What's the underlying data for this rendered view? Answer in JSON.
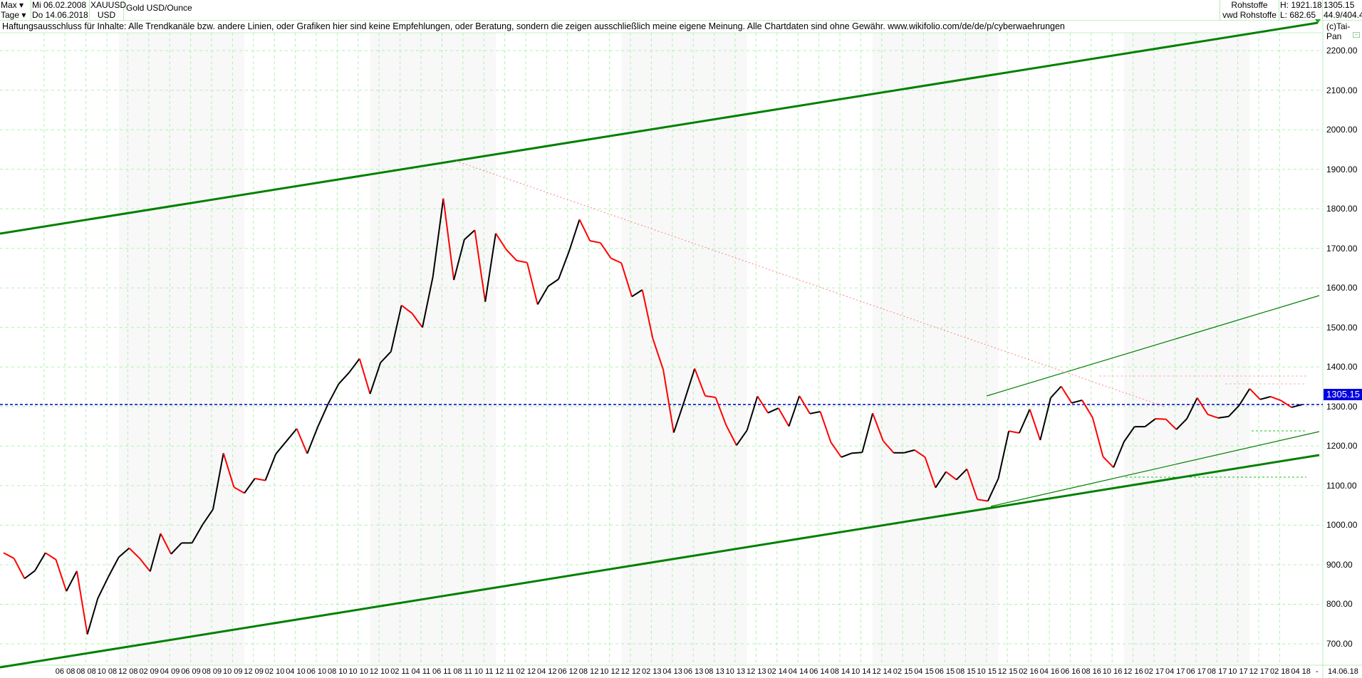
{
  "header": {
    "period": "Max",
    "start_date": "Mi 06.02.2008",
    "interval": "Tage",
    "end_date": "Do 14.06.2018",
    "symbol": "XAUUSD",
    "currency": "USD",
    "name": "Gold USD/Ounce",
    "category": "Rohstoffe",
    "source": "vwd Rohstoffe",
    "high": "H: 1921.18",
    "low": "L: 682.65",
    "last": "1305.15",
    "extra": "44.9/404.4",
    "copyright": "(c)Tai-Pan"
  },
  "disclaimer": "Haftungsausschluss für Inhalte: Alle Trendkanäle bzw. andere Linien, oder Grafiken hier sind keine Empfehlungen, oder Beratung, sondern die zeigen ausschließlich meine eigene Meinung. Alle Chartdaten sind ohne Gewähr.  www.wikifolio.com/de/de/p/cyberwaehrungen",
  "footer": {
    "dash": "-",
    "date": "14.06.18"
  },
  "colors": {
    "up": "#000000",
    "down": "#ff0000",
    "trend": "#008000",
    "grid": "#b0f0b0",
    "resistance": "#ff8080",
    "price_line": "#0000c0"
  },
  "chart_data": {
    "type": "line",
    "title": "Gold USD/Ounce",
    "x_start": "2008-02",
    "x_step": "month",
    "ylim": [
      650,
      2300
    ],
    "grid": true,
    "yticks": [
      "700.00",
      "800.00",
      "900.00",
      "1000.00",
      "1100.00",
      "1200.00",
      "1300.00",
      "1400.00",
      "1500.00",
      "1600.00",
      "1700.00",
      "1800.00",
      "1900.00",
      "2000.00",
      "2100.00",
      "2200.00"
    ],
    "xtick_labels": [
      "06 08",
      "08 08",
      "10 08",
      "12 08",
      "02 09",
      "04 09",
      "06 09",
      "08 09",
      "10 09",
      "12 09",
      "02 10",
      "04 10",
      "06 10",
      "08 10",
      "10 10",
      "12 10",
      "02 11",
      "04 11",
      "06 11",
      "08 11",
      "10 11",
      "12 11",
      "02 12",
      "04 12",
      "06 12",
      "08 12",
      "10 12",
      "12 12",
      "02 13",
      "04 13",
      "06 13",
      "08 13",
      "10 13",
      "12 13",
      "02 14",
      "04 14",
      "06 14",
      "08 14",
      "10 14",
      "12 14",
      "02 15",
      "04 15",
      "06 15",
      "08 15",
      "10 15",
      "12 15",
      "02 16",
      "04 16",
      "06 16",
      "08 16",
      "10 16",
      "12 16",
      "02 17",
      "04 17",
      "06 17",
      "08 17",
      "10 17",
      "12 17",
      "02 18",
      "04 18"
    ],
    "values": [
      930,
      916,
      865,
      885,
      930,
      913,
      833,
      884,
      724,
      815,
      869,
      919,
      942,
      916,
      883,
      979,
      927,
      955,
      955,
      1001,
      1040,
      1182,
      1096,
      1081,
      1118,
      1113,
      1180,
      1212,
      1244,
      1181,
      1248,
      1307,
      1357,
      1386,
      1421,
      1332,
      1411,
      1439,
      1556,
      1536,
      1500,
      1628,
      1826,
      1620,
      1722,
      1746,
      1565,
      1738,
      1697,
      1669,
      1664,
      1558,
      1604,
      1622,
      1692,
      1773,
      1719,
      1714,
      1675,
      1663,
      1578,
      1595,
      1472,
      1393,
      1234,
      1313,
      1396,
      1327,
      1323,
      1253,
      1202,
      1240,
      1326,
      1284,
      1296,
      1250,
      1327,
      1282,
      1287,
      1210,
      1172,
      1182,
      1184,
      1283,
      1213,
      1183,
      1183,
      1190,
      1172,
      1095,
      1135,
      1115,
      1142,
      1065,
      1061,
      1118,
      1238,
      1233,
      1293,
      1215,
      1322,
      1351,
      1309,
      1316,
      1272,
      1173,
      1146,
      1211,
      1249,
      1249,
      1269,
      1268,
      1242,
      1269,
      1322,
      1280,
      1271,
      1275,
      1303,
      1345,
      1318,
      1325,
      1315,
      1298,
      1305
    ],
    "last_price": 1305.15,
    "high": 1921.18,
    "low": 682.65
  }
}
